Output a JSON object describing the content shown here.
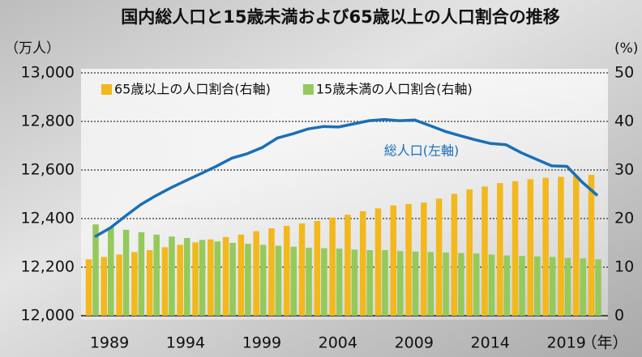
{
  "chart_data": {
    "type": "bar",
    "title": "国内総人口と15歳未満および65歳以上の人口割合の推移",
    "y_unit": "（万人）",
    "y2_unit": "(%)",
    "x_unit": "（年）",
    "annotation": "総人口(左軸)",
    "categories": [
      "1989",
      null,
      null,
      null,
      null,
      "1994",
      null,
      null,
      null,
      null,
      "1999",
      null,
      null,
      null,
      null,
      "2004",
      null,
      null,
      null,
      null,
      "2009",
      null,
      null,
      null,
      null,
      "2014",
      null,
      null,
      null,
      null,
      "2019",
      null,
      null,
      null
    ],
    "series": [
      {
        "name": "総人口(左軸)",
        "type": "line",
        "color": "#1a6fb5",
        "values": [
          12325,
          12361,
          12410,
          12457,
          12494,
          12527,
          12557,
          12586,
          12616,
          12649,
          12667,
          12693,
          12732,
          12749,
          12769,
          12779,
          12777,
          12790,
          12803,
          12808,
          12803,
          12806,
          12783,
          12759,
          12741,
          12724,
          12709,
          12704,
          12671,
          12644,
          12617,
          12615,
          12550,
          12495
        ]
      },
      {
        "name": "65歳以上の人口割合(右軸)",
        "axis": "y2",
        "color": "#f2b81c",
        "values": [
          11.6,
          12.1,
          12.6,
          13.1,
          13.5,
          14.1,
          14.6,
          15.1,
          15.7,
          16.2,
          16.7,
          17.4,
          18.0,
          18.5,
          19.0,
          19.5,
          20.2,
          20.8,
          21.5,
          22.1,
          22.7,
          23.0,
          23.3,
          24.1,
          25.1,
          26.0,
          26.6,
          27.3,
          27.7,
          28.1,
          28.4,
          28.6,
          28.9,
          29.0
        ]
      },
      {
        "name": "15歳未満の人口割合(右軸)",
        "axis": "y2",
        "color": "#94c95c",
        "values": [
          18.8,
          18.2,
          17.7,
          17.2,
          16.7,
          16.3,
          16.0,
          15.6,
          15.3,
          15.0,
          14.8,
          14.6,
          14.4,
          14.2,
          14.0,
          13.9,
          13.8,
          13.6,
          13.5,
          13.5,
          13.3,
          13.2,
          13.1,
          13.0,
          12.9,
          12.8,
          12.6,
          12.4,
          12.3,
          12.2,
          12.1,
          11.9,
          11.8,
          11.6
        ]
      }
    ],
    "ylim": [
      12000,
      13000
    ],
    "yticks": [
      {
        "value": 12000,
        "label": "12,000"
      },
      {
        "value": 12200,
        "label": "12,200"
      },
      {
        "value": 12400,
        "label": "12,400"
      },
      {
        "value": 12600,
        "label": "12,600"
      },
      {
        "value": 12800,
        "label": "12,800"
      },
      {
        "value": 13000,
        "label": "13,000"
      }
    ],
    "y2lim": [
      0,
      50
    ],
    "y2ticks": [
      0,
      10,
      20,
      30,
      40,
      50
    ],
    "grid": true
  }
}
